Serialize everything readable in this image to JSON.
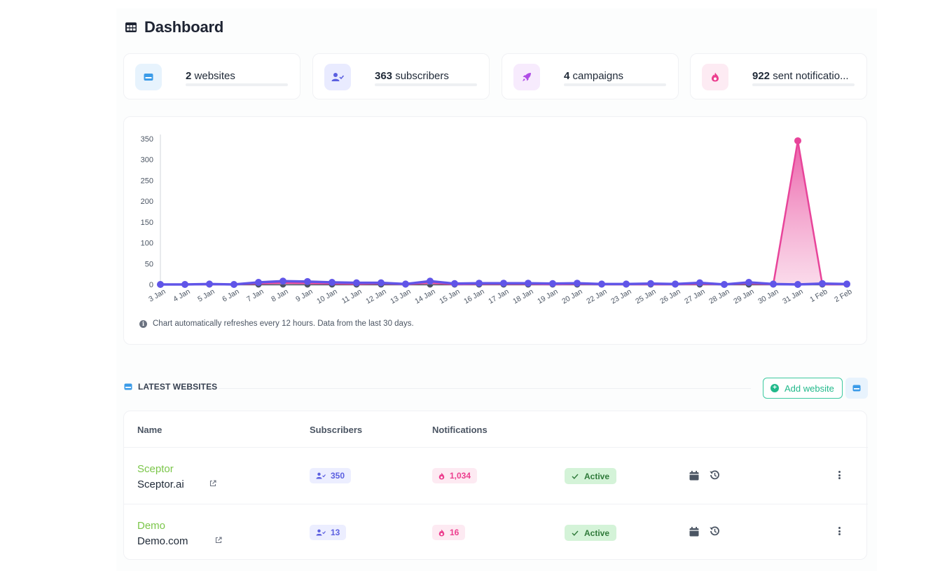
{
  "page": {
    "title": "Dashboard"
  },
  "stats": [
    {
      "value": "2",
      "label": "websites",
      "icon": "website-icon",
      "color": "#3b9be8",
      "bg": "#e7f3fd"
    },
    {
      "value": "363",
      "label": "subscribers",
      "icon": "subscriber-icon",
      "color": "#5b5fe0",
      "bg": "#e9ebff"
    },
    {
      "value": "4",
      "label": "campaigns",
      "icon": "rocket-icon",
      "color": "#b04de6",
      "bg": "#f7ebfd"
    },
    {
      "value": "922",
      "label": "sent notificatio...",
      "icon": "fire-icon",
      "color": "#ec3f8f",
      "bg": "#fdebf3"
    }
  ],
  "chart_data": {
    "type": "area",
    "title": "",
    "xlabel": "",
    "ylabel": "",
    "ylim": [
      0,
      350
    ],
    "yticks": [
      "0",
      "50",
      "100",
      "150",
      "200",
      "250",
      "300",
      "350"
    ],
    "categories": [
      "3 Jan",
      "4 Jan",
      "5 Jan",
      "6 Jan",
      "7 Jan",
      "8 Jan",
      "9 Jan",
      "10 Jan",
      "11 Jan",
      "12 Jan",
      "13 Jan",
      "14 Jan",
      "15 Jan",
      "16 Jan",
      "17 Jan",
      "18 Jan",
      "19 Jan",
      "20 Jan",
      "22 Jan",
      "23 Jan",
      "25 Jan",
      "26 Jan",
      "27 Jan",
      "28 Jan",
      "29 Jan",
      "30 Jan",
      "31 Jan",
      "1 Feb",
      "2 Feb"
    ],
    "series": [
      {
        "color": "#e8449a",
        "values": [
          0,
          0,
          0,
          0,
          2,
          4,
          3,
          2,
          1,
          2,
          0,
          4,
          0,
          1,
          1,
          1,
          0,
          1,
          0,
          0,
          0,
          0,
          1,
          0,
          2,
          0,
          345,
          0,
          0
        ]
      },
      {
        "color": "#6055e8",
        "values": [
          0,
          0,
          1,
          0,
          5,
          8,
          7,
          5,
          4,
          4,
          1,
          8,
          2,
          3,
          3,
          3,
          2,
          3,
          1,
          1,
          2,
          1,
          4,
          0,
          5,
          1,
          0,
          2,
          1
        ]
      },
      {
        "color": "#4b5563",
        "values": [
          0,
          0,
          0,
          0,
          0,
          0,
          0,
          0,
          0,
          0,
          0,
          0,
          0,
          0,
          0,
          0,
          0,
          0,
          0,
          0,
          0,
          0,
          0,
          0,
          0,
          0,
          0,
          0,
          0
        ]
      }
    ],
    "grid": false,
    "note": "Chart automatically refreshes every 12 hours. Data from the last 30 days."
  },
  "latest": {
    "heading": "LATEST WEBSITES",
    "add_label": "Add website",
    "columns": [
      "Name",
      "Subscribers",
      "Notifications"
    ],
    "rows": [
      {
        "name": "Sceptor",
        "url": "Sceptor.ai",
        "subscribers": "350",
        "notifications": "1,034",
        "status": "Active"
      },
      {
        "name": "Demo",
        "url": "Demo.com",
        "subscribers": "13",
        "notifications": "16",
        "status": "Active"
      }
    ]
  }
}
